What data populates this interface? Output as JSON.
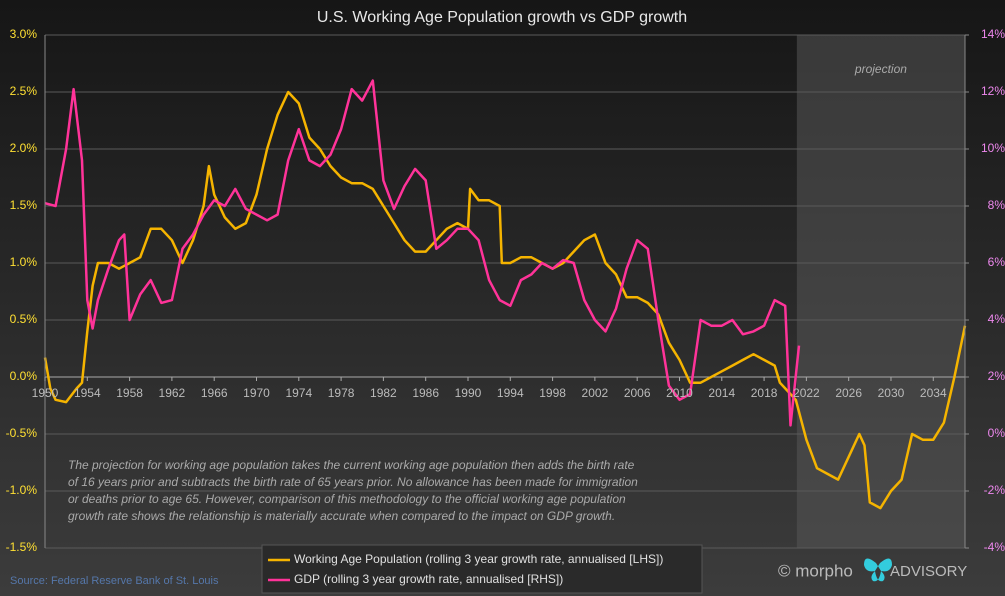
{
  "chart_data": {
    "type": "line",
    "title": "U.S. Working Age Population growth vs GDP growth",
    "projection_label": "projection",
    "projection_start": 2021.1,
    "annotation": [
      "The projection for working age population takes the current working age population then adds the birth rate",
      "of 16 years prior and subtracts the birth rate of 65 years prior. No allowance has been made for immigration",
      "or deaths prior to age 65. However, comparison of this methodology to the official working age population",
      "growth rate shows the relationship is materially accurate when compared to the impact on GDP growth."
    ],
    "source": "Source: Federal Reserve Bank of St. Louis",
    "logo": [
      "© morpho",
      "ADVISORY"
    ],
    "xlim": [
      1950,
      2037
    ],
    "xticks": [
      1950,
      1954,
      1958,
      1962,
      1966,
      1970,
      1974,
      1978,
      1982,
      1986,
      1990,
      1994,
      1998,
      2002,
      2006,
      2010,
      2014,
      2018,
      2022,
      2026,
      2030,
      2034
    ],
    "ylim": [
      -1.5,
      3.0
    ],
    "yticks": [
      {
        "value": -1.5,
        "label": "-1.5%"
      },
      {
        "value": -1.0,
        "label": "-1.0%"
      },
      {
        "value": -0.5,
        "label": "-0.5%"
      },
      {
        "value": 0,
        "label": "0.0%"
      },
      {
        "value": 0.5,
        "label": "0.5%"
      },
      {
        "value": 1.0,
        "label": "1.0%"
      },
      {
        "value": 1.5,
        "label": "1.5%"
      },
      {
        "value": 2.0,
        "label": "2.0%"
      },
      {
        "value": 2.5,
        "label": "2.5%"
      },
      {
        "value": 3.0,
        "label": "3.0%"
      }
    ],
    "y2lim": [
      -4,
      14
    ],
    "y2ticks": [
      {
        "value": -4,
        "label": "-4%"
      },
      {
        "value": -2,
        "label": "-2%"
      },
      {
        "value": 0,
        "label": "0%"
      },
      {
        "value": 2,
        "label": "2%"
      },
      {
        "value": 4,
        "label": "4%"
      },
      {
        "value": 6,
        "label": "6%"
      },
      {
        "value": 8,
        "label": "8%"
      },
      {
        "value": 10,
        "label": "10%"
      },
      {
        "value": 12,
        "label": "12%"
      },
      {
        "value": 14,
        "label": "14%"
      }
    ],
    "grid": true,
    "series": [
      {
        "name": "Working Age Population (rolling 3 year growth rate, annualised [LHS])",
        "color": "#f5b400",
        "axis": "y",
        "x": [
          1950,
          1950.5,
          1951,
          1952,
          1953,
          1953.5,
          1954,
          1954.5,
          1955,
          1956,
          1957,
          1958,
          1959,
          1960,
          1961,
          1962,
          1963,
          1964,
          1965,
          1965.5,
          1966,
          1967,
          1968,
          1969,
          1970,
          1971,
          1972,
          1973,
          1974,
          1975,
          1976,
          1977,
          1978,
          1979,
          1980,
          1981,
          1982,
          1983,
          1984,
          1985,
          1986,
          1987,
          1988,
          1989,
          1990,
          1990.2,
          1991,
          1992,
          1993,
          1993.2,
          1994,
          1995,
          1996,
          1997,
          1998,
          1999,
          2000,
          2001,
          2002,
          2003,
          2004,
          2005,
          2006,
          2007,
          2008,
          2009,
          2010,
          2011,
          2012,
          2013,
          2014,
          2015,
          2016,
          2017,
          2018,
          2019,
          2019.5,
          2020,
          2021,
          2022,
          2023,
          2024,
          2025,
          2026,
          2027,
          2027.5,
          2028,
          2029,
          2030,
          2031,
          2032,
          2033,
          2034,
          2035,
          2036,
          2037
        ],
        "values": [
          0.17,
          -0.1,
          -0.2,
          -0.22,
          -0.1,
          -0.05,
          0.4,
          0.8,
          1.0,
          1.0,
          0.95,
          1.0,
          1.05,
          1.3,
          1.3,
          1.2,
          1.0,
          1.2,
          1.5,
          1.85,
          1.6,
          1.4,
          1.3,
          1.35,
          1.6,
          2.0,
          2.3,
          2.5,
          2.4,
          2.1,
          2.0,
          1.85,
          1.75,
          1.7,
          1.7,
          1.65,
          1.5,
          1.35,
          1.2,
          1.1,
          1.1,
          1.2,
          1.3,
          1.35,
          1.3,
          1.65,
          1.55,
          1.55,
          1.5,
          1.0,
          1.0,
          1.05,
          1.05,
          1.0,
          0.95,
          1.0,
          1.1,
          1.2,
          1.25,
          1.0,
          0.9,
          0.7,
          0.7,
          0.65,
          0.55,
          0.3,
          0.15,
          -0.05,
          -0.05,
          0.0,
          0.05,
          0.1,
          0.15,
          0.2,
          0.15,
          0.1,
          -0.05,
          -0.1,
          -0.2,
          -0.55,
          -0.8,
          -0.85,
          -0.9,
          -0.7,
          -0.5,
          -0.6,
          -1.1,
          -1.15,
          -1.0,
          -0.9,
          -0.5,
          -0.55,
          -0.55,
          -0.4,
          0.0,
          0.45
        ]
      },
      {
        "name": "GDP (rolling 3 year growth rate, annualised [RHS])",
        "color": "#ff3399",
        "axis": "y2",
        "x": [
          1950,
          1951,
          1952,
          1952.7,
          1953.5,
          1954,
          1954.5,
          1955,
          1956,
          1957,
          1957.5,
          1958,
          1959,
          1960,
          1961,
          1962,
          1963,
          1964,
          1965,
          1966,
          1967,
          1968,
          1969,
          1970,
          1971,
          1972,
          1973,
          1974,
          1975,
          1976,
          1977,
          1978,
          1979,
          1980,
          1981,
          1982,
          1983,
          1984,
          1985,
          1986,
          1987,
          1988,
          1989,
          1990,
          1991,
          1992,
          1993,
          1994,
          1995,
          1996,
          1997,
          1998,
          1999,
          2000,
          2001,
          2002,
          2003,
          2004,
          2005,
          2006,
          2007,
          2008,
          2009,
          2010,
          2011,
          2012,
          2013,
          2014,
          2015,
          2016,
          2017,
          2018,
          2019,
          2020,
          2020.5,
          2021.3
        ],
        "values": [
          8.1,
          8.0,
          10.0,
          12.1,
          9.6,
          4.7,
          3.7,
          4.7,
          5.8,
          6.8,
          7.0,
          4.0,
          4.9,
          5.4,
          4.6,
          4.7,
          6.5,
          7.0,
          7.7,
          8.2,
          8.0,
          8.6,
          7.9,
          7.7,
          7.5,
          7.7,
          9.6,
          10.7,
          9.6,
          9.4,
          9.8,
          10.7,
          12.1,
          11.7,
          12.4,
          8.9,
          7.9,
          8.7,
          9.3,
          8.9,
          6.5,
          6.8,
          7.2,
          7.2,
          6.8,
          5.4,
          4.7,
          4.5,
          5.4,
          5.6,
          6.0,
          5.8,
          6.1,
          6.0,
          4.7,
          4.0,
          3.6,
          4.4,
          5.8,
          6.8,
          6.5,
          4.0,
          1.7,
          1.2,
          1.4,
          4.0,
          3.8,
          3.8,
          4.0,
          3.5,
          3.6,
          3.8,
          4.7,
          4.5,
          0.3,
          3.1
        ]
      }
    ]
  }
}
